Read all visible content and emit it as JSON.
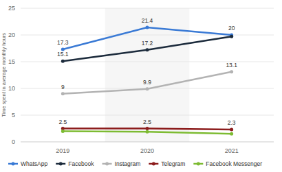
{
  "chart_data": {
    "type": "line",
    "y_label": "Time spent in average monthly hours",
    "categories": [
      "2019",
      "2020",
      "2021"
    ],
    "series": [
      {
        "name": "WhatsApp",
        "color": "#3a7ad5",
        "values": [
          17.3,
          21.4,
          20
        ],
        "value_labels": [
          "17.3",
          "21.4",
          "20"
        ]
      },
      {
        "name": "Facebook",
        "color": "#1c2b3c",
        "values": [
          15.1,
          17.2,
          19.7
        ],
        "value_labels": [
          "15.1",
          "17.2",
          null
        ]
      },
      {
        "name": "Instagram",
        "color": "#b3b3b3",
        "values": [
          9,
          9.9,
          13.1
        ],
        "value_labels": [
          "9",
          "9.9",
          "13.1"
        ]
      },
      {
        "name": "Telegram",
        "color": "#8c1c1c",
        "values": [
          2.5,
          2.5,
          2.3
        ],
        "value_labels": [
          "2.5",
          "2.5",
          "2.3"
        ]
      },
      {
        "name": "Facebook Messenger",
        "color": "#7dbb32",
        "values": [
          2.0,
          1.9,
          1.5
        ]
      }
    ],
    "ylim": [
      0,
      25
    ],
    "yticks": [
      0,
      5,
      10,
      15,
      20,
      25
    ],
    "grid": true,
    "data_labels": true,
    "legend": "bottom",
    "marker": "circle"
  }
}
